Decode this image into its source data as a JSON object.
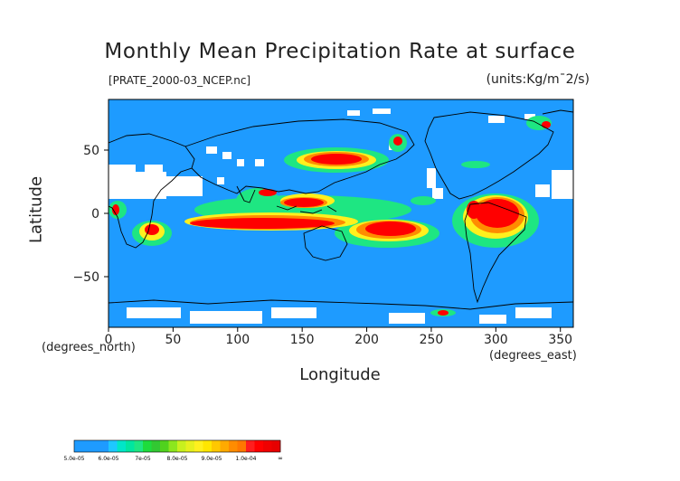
{
  "title": "Monthly Mean Precipitation Rate at surface",
  "subtitle_left": "[PRATE_2000-03_NCEP.nc]",
  "subtitle_right": "(units:Kg/m¯2/s)",
  "axes": {
    "x_label": "Longitude",
    "y_label": "Latitude",
    "x_unit": "(degrees_east)",
    "y_unit": "(degrees_north)",
    "x_ticks": [
      "0",
      "50",
      "100",
      "150",
      "200",
      "250",
      "300",
      "350"
    ],
    "y_ticks": [
      "50",
      "0",
      "−50"
    ]
  },
  "colors": {
    "background": "#1e9bff",
    "no_data": "#ffffff",
    "coast": "#000000"
  },
  "legend": {
    "levels": [
      {
        "label": "5.0e-05",
        "colors": [
          "#1e9bff",
          "#1e9bff",
          "#1e9bff",
          "#1e9bff"
        ]
      },
      {
        "label": "6.0e-05",
        "colors": [
          "#1ec8ff",
          "#00e6c8",
          "#00e6a0",
          "#1ee682"
        ]
      },
      {
        "label": "7e-05",
        "colors": [
          "#1edc3c",
          "#32c832",
          "#50d21e",
          "#8ce61e"
        ]
      },
      {
        "label": "8.0e-05",
        "colors": [
          "#c8f01e",
          "#e6f01e",
          "#fff01e",
          "#ffe600"
        ]
      },
      {
        "label": "9.0e-05",
        "colors": [
          "#ffc800",
          "#ffaa00",
          "#ff8c00",
          "#ff7800"
        ]
      },
      {
        "label": "1.0e-04",
        "colors": [
          "#ff1e1e",
          "#ff0000",
          "#f00000",
          "#e60000"
        ]
      }
    ],
    "end_label": "∞"
  }
}
